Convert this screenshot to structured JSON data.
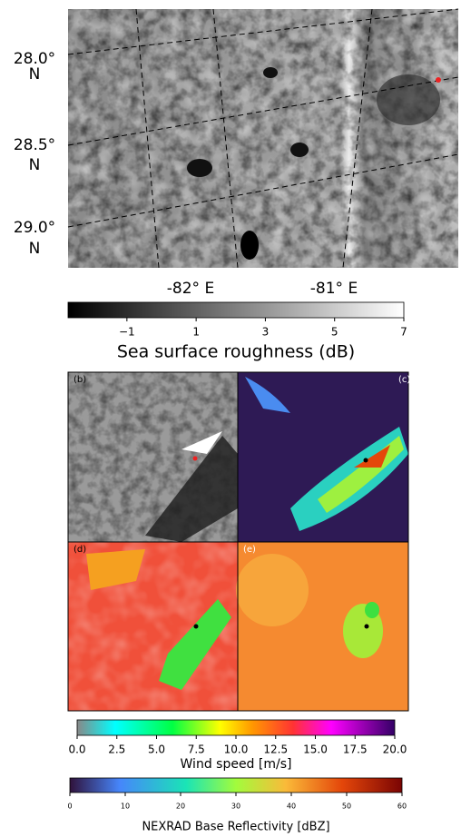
{
  "map": {
    "lat_labels": [
      [
        "28.0°",
        "N"
      ],
      [
        "28.5°",
        "N"
      ],
      [
        "29.0°",
        "N"
      ]
    ],
    "lon_labels": [
      "-82° E",
      "-81° E"
    ]
  },
  "panels": [
    "(b)",
    "(c)",
    "(d)",
    "(e)"
  ],
  "colorbars": [
    {
      "label": "Sea surface roughness (dB)",
      "lim": [
        -2.7,
        7
      ],
      "ticks": [
        {
          "value": -1,
          "label": "−1"
        },
        1,
        3,
        5,
        7
      ]
    },
    {
      "label": "Wind speed [m/s]",
      "lim": [
        0,
        20
      ],
      "ticks": [
        {
          "value": 0,
          "label": "0.0"
        },
        2.5,
        {
          "value": 5,
          "label": "5.0"
        },
        7.5,
        {
          "value": 10,
          "label": "10.0"
        },
        12.5,
        {
          "value": 15,
          "label": "15.0"
        },
        17.5,
        {
          "value": 20,
          "label": "20.0"
        }
      ]
    },
    {
      "label": "NEXRAD Base Reflectivity [dBZ]",
      "lim": [
        0,
        60
      ],
      "ticks": [
        0,
        10,
        20,
        30,
        40,
        50,
        60
      ]
    }
  ]
}
